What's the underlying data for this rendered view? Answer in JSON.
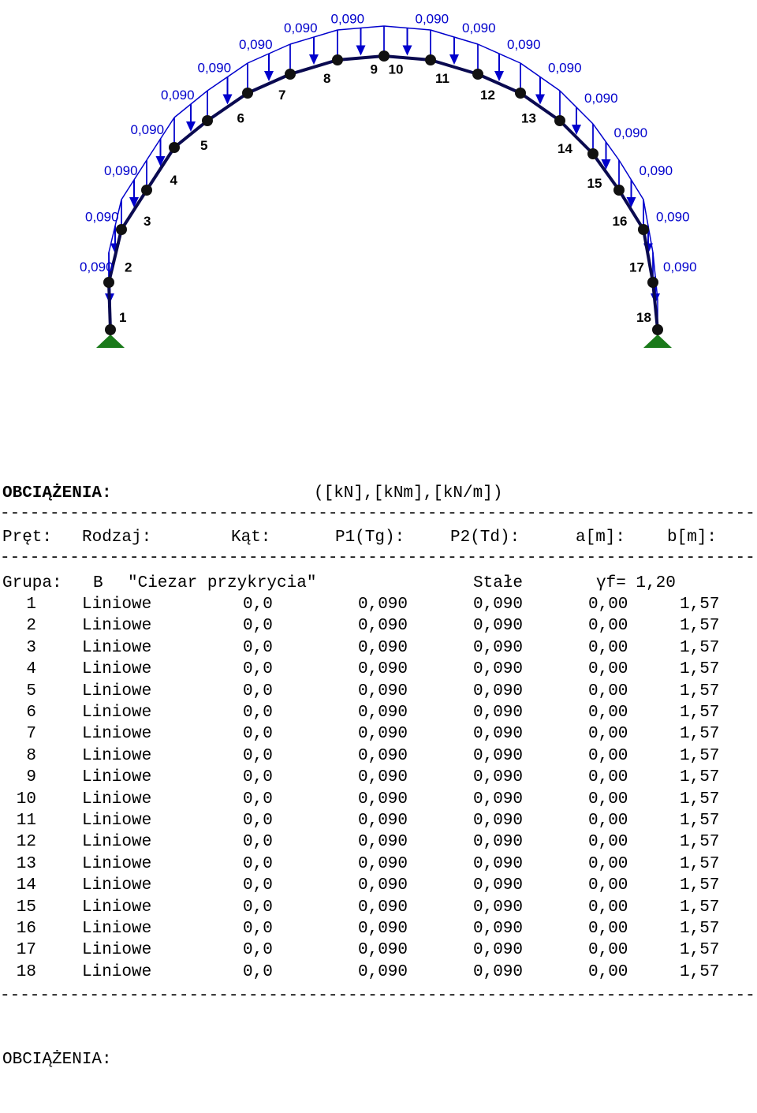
{
  "diagram": {
    "load_color": "#0000cc",
    "bar_color": "#0a0a50",
    "support_color": "#1a7a1a",
    "nodes": [
      "1",
      "2",
      "3",
      "4",
      "5",
      "6",
      "7",
      "8",
      "9",
      "10",
      "11",
      "12",
      "13",
      "14",
      "15",
      "16",
      "17",
      "18"
    ],
    "load_labels": [
      "0,090",
      "0,090",
      "0,090",
      "0,090",
      "0,090",
      "0,090",
      "0,090",
      "0,090",
      "0,090",
      "0,090",
      "0,090",
      "0,090",
      "0,090",
      "0,090",
      "0,090",
      "0,090",
      "0,090",
      "0,090"
    ]
  },
  "report": {
    "section_title": "OBCIĄŻENIA:",
    "units": "([kN],[kNm],[kN/m])",
    "headers": [
      "Pręt:",
      "Rodzaj:",
      "Kąt:",
      "P1(Tg):",
      "P2(Td):",
      "a[m]:",
      "b[m]:"
    ],
    "group": {
      "label": "Grupa:",
      "code": "B",
      "name": "\"Ciezar przykrycia\"",
      "type": "Stałe",
      "factor": "γf= 1,20"
    },
    "rows": [
      [
        "1",
        "Liniowe",
        "0,0",
        "0,090",
        "0,090",
        "0,00",
        "1,57"
      ],
      [
        "2",
        "Liniowe",
        "0,0",
        "0,090",
        "0,090",
        "0,00",
        "1,57"
      ],
      [
        "3",
        "Liniowe",
        "0,0",
        "0,090",
        "0,090",
        "0,00",
        "1,57"
      ],
      [
        "4",
        "Liniowe",
        "0,0",
        "0,090",
        "0,090",
        "0,00",
        "1,57"
      ],
      [
        "5",
        "Liniowe",
        "0,0",
        "0,090",
        "0,090",
        "0,00",
        "1,57"
      ],
      [
        "6",
        "Liniowe",
        "0,0",
        "0,090",
        "0,090",
        "0,00",
        "1,57"
      ],
      [
        "7",
        "Liniowe",
        "0,0",
        "0,090",
        "0,090",
        "0,00",
        "1,57"
      ],
      [
        "8",
        "Liniowe",
        "0,0",
        "0,090",
        "0,090",
        "0,00",
        "1,57"
      ],
      [
        "9",
        "Liniowe",
        "0,0",
        "0,090",
        "0,090",
        "0,00",
        "1,57"
      ],
      [
        "10",
        "Liniowe",
        "0,0",
        "0,090",
        "0,090",
        "0,00",
        "1,57"
      ],
      [
        "11",
        "Liniowe",
        "0,0",
        "0,090",
        "0,090",
        "0,00",
        "1,57"
      ],
      [
        "12",
        "Liniowe",
        "0,0",
        "0,090",
        "0,090",
        "0,00",
        "1,57"
      ],
      [
        "13",
        "Liniowe",
        "0,0",
        "0,090",
        "0,090",
        "0,00",
        "1,57"
      ],
      [
        "14",
        "Liniowe",
        "0,0",
        "0,090",
        "0,090",
        "0,00",
        "1,57"
      ],
      [
        "15",
        "Liniowe",
        "0,0",
        "0,090",
        "0,090",
        "0,00",
        "1,57"
      ],
      [
        "16",
        "Liniowe",
        "0,0",
        "0,090",
        "0,090",
        "0,00",
        "1,57"
      ],
      [
        "17",
        "Liniowe",
        "0,0",
        "0,090",
        "0,090",
        "0,00",
        "1,57"
      ],
      [
        "18",
        "Liniowe",
        "0,0",
        "0,090",
        "0,090",
        "0,00",
        "1,57"
      ]
    ],
    "footer_title": "OBCIĄŻENIA:"
  }
}
